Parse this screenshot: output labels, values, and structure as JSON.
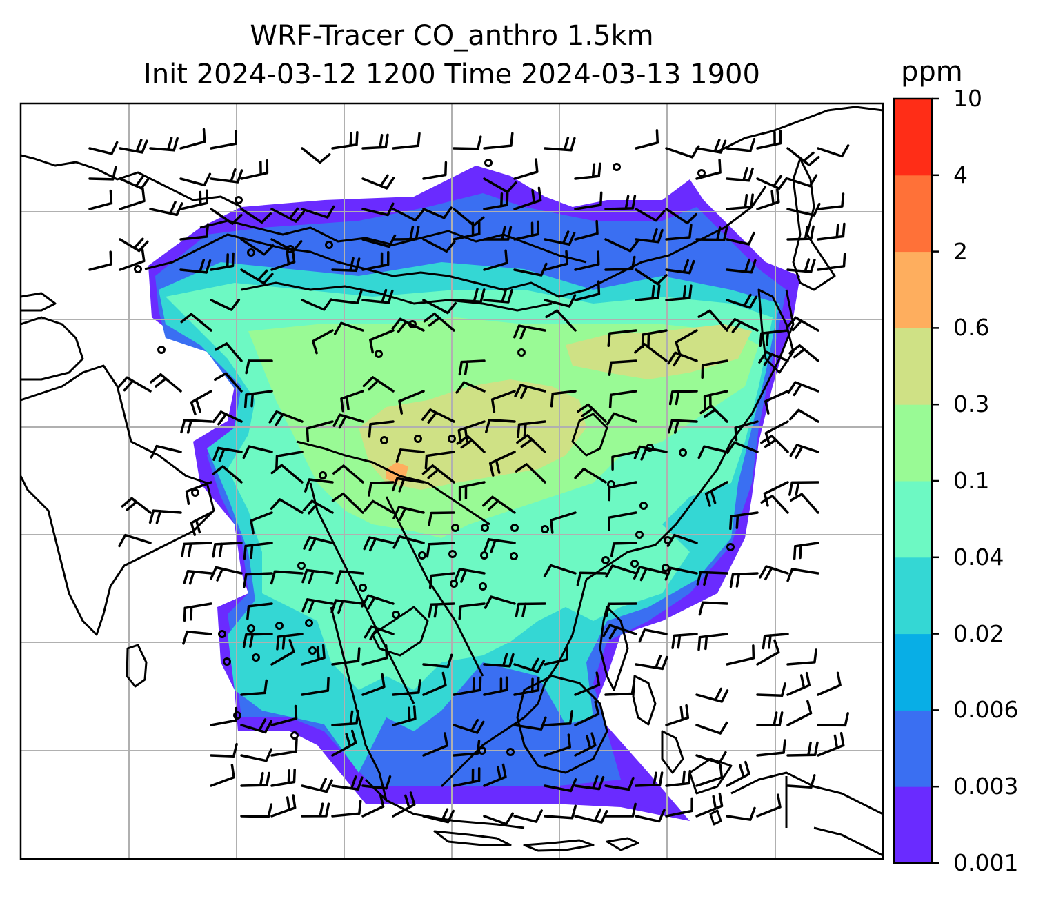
{
  "title_line1": "WRF-Tracer CO_anthro 1.5km",
  "title_line2": "Init 2024-03-12 1200 Time 2024-03-13 1900",
  "colorbar": {
    "unit": "ppm",
    "tick_labels": [
      "0.001",
      "0.003",
      "0.006",
      "0.02",
      "0.04",
      "0.1",
      "0.3",
      "0.6",
      "2",
      "4",
      "10"
    ],
    "colors": [
      "#6a2bff",
      "#3a6ff2",
      "#08aee6",
      "#34d7d4",
      "#6df9c3",
      "#99fa95",
      "#cfe185",
      "#feae5e",
      "#ff7138",
      "#ff2d17"
    ]
  },
  "map": {
    "gridlines": true,
    "field_colors": {
      "very_low": "#6a2bff",
      "low": "#3a6ff2",
      "medium_low": "#34d7d4",
      "medium": "#6df9c3",
      "medium_high": "#99fa95",
      "high": "#cfe185",
      "peak": "#feae5e"
    },
    "wind_barbs_shown": true,
    "calm_wind_markers_shown": true
  }
}
